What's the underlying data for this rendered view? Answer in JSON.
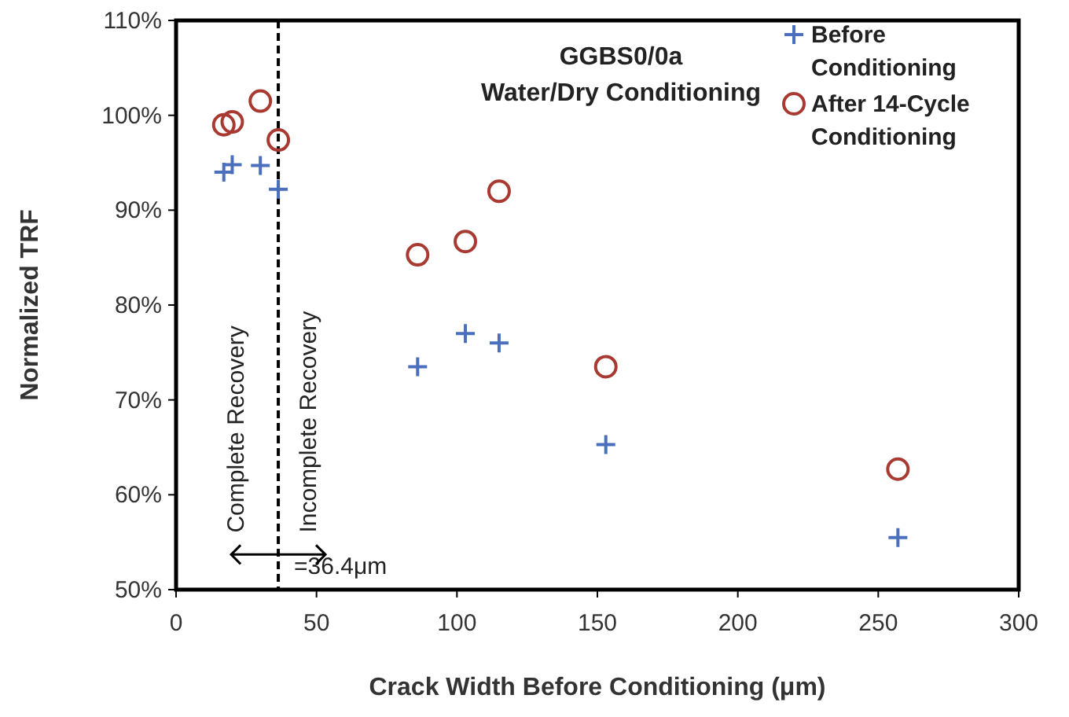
{
  "chart_data": {
    "type": "scatter",
    "title": "GGBS0/0a",
    "subtitle": "Water/Dry Conditioning",
    "xlabel": "Crack Width Before Conditioning (μm)",
    "ylabel": "Normalized TRF",
    "xlim": [
      0,
      300
    ],
    "xticks": [
      0,
      50,
      100,
      150,
      200,
      250,
      300
    ],
    "ylim": [
      50,
      110
    ],
    "yticks": [
      {
        "value": 50,
        "label": "50%"
      },
      {
        "value": 60,
        "label": "60%"
      },
      {
        "value": 70,
        "label": "70%"
      },
      {
        "value": 80,
        "label": "80%"
      },
      {
        "value": 90,
        "label": "90%"
      },
      {
        "value": 100,
        "label": "100%"
      },
      {
        "value": 110,
        "label": "110%"
      }
    ],
    "series": [
      {
        "name": "Before Conditioning",
        "color": "#4a6fbd",
        "marker": "cross",
        "x": [
          17,
          20,
          30,
          36.4,
          86,
          103,
          115,
          153,
          257
        ],
        "values": [
          94,
          94.8,
          94.7,
          92.2,
          73.5,
          77,
          76,
          65.3,
          55.5
        ]
      },
      {
        "name": "After 14-Cycle Conditioning",
        "color": "#a83a32",
        "marker": "circle",
        "x": [
          17,
          20,
          30,
          36.4,
          86,
          103,
          115,
          153,
          257
        ],
        "values": [
          99,
          99.3,
          101.5,
          97.4,
          85.3,
          86.7,
          92,
          73.5,
          62.7
        ]
      }
    ],
    "ref_lines": [
      {
        "axis": "x",
        "value": 36.4,
        "label": "=36.4μm",
        "color": "#000000",
        "line_style": "dashed"
      }
    ],
    "annotations": [
      "Complete Recovery",
      "Incomplete Recovery"
    ],
    "legend": "top right",
    "grid": false
  }
}
